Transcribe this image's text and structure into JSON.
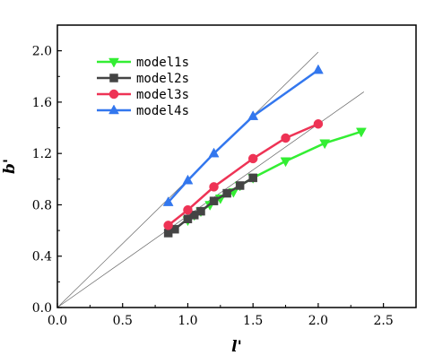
{
  "chart_data": {
    "type": "line",
    "xlabel": "l'",
    "ylabel": "b'",
    "xlim": [
      0,
      2.75
    ],
    "ylim": [
      0,
      2.2
    ],
    "xticks": [
      0.0,
      0.5,
      1.0,
      1.5,
      2.0,
      2.5
    ],
    "yticks": [
      0.0,
      0.4,
      0.8,
      1.2,
      1.6,
      2.0
    ],
    "x_tick_labels": [
      "0.0",
      "0.5",
      "1.0",
      "1.5",
      "2.0",
      "2.5"
    ],
    "y_tick_labels": [
      "0.0",
      "0.4",
      "0.8",
      "1.2",
      "1.6",
      "2.0"
    ],
    "grid": false,
    "legend_position": "top-left",
    "reference_lines": [
      {
        "x": [
          0,
          2.0
        ],
        "y": [
          0,
          1.99
        ]
      },
      {
        "x": [
          0,
          2.35
        ],
        "y": [
          0,
          1.68
        ]
      }
    ],
    "series": [
      {
        "name": "model1s",
        "color": "#33ee33",
        "marker": "triangle-down",
        "x": [
          1.0,
          1.05,
          1.1,
          1.17,
          1.25,
          1.35,
          1.4,
          1.5,
          1.75,
          2.05,
          2.33
        ],
        "y": [
          0.68,
          0.72,
          0.75,
          0.8,
          0.85,
          0.9,
          0.95,
          1.01,
          1.14,
          1.28,
          1.37
        ]
      },
      {
        "name": "model2s",
        "color": "#444444",
        "marker": "square",
        "x": [
          0.85,
          0.9,
          1.0,
          1.05,
          1.1,
          1.2,
          1.3,
          1.4,
          1.5
        ],
        "y": [
          0.58,
          0.61,
          0.69,
          0.72,
          0.75,
          0.83,
          0.89,
          0.95,
          1.01
        ]
      },
      {
        "name": "model3s",
        "color": "#ee3355",
        "marker": "circle",
        "x": [
          0.85,
          1.0,
          1.2,
          1.5,
          1.75,
          2.0
        ],
        "y": [
          0.64,
          0.76,
          0.94,
          1.16,
          1.32,
          1.43
        ]
      },
      {
        "name": "model4s",
        "color": "#3377ee",
        "marker": "triangle-up",
        "x": [
          0.85,
          1.0,
          1.2,
          1.5,
          2.0
        ],
        "y": [
          0.82,
          0.99,
          1.2,
          1.49,
          1.85
        ]
      }
    ]
  }
}
